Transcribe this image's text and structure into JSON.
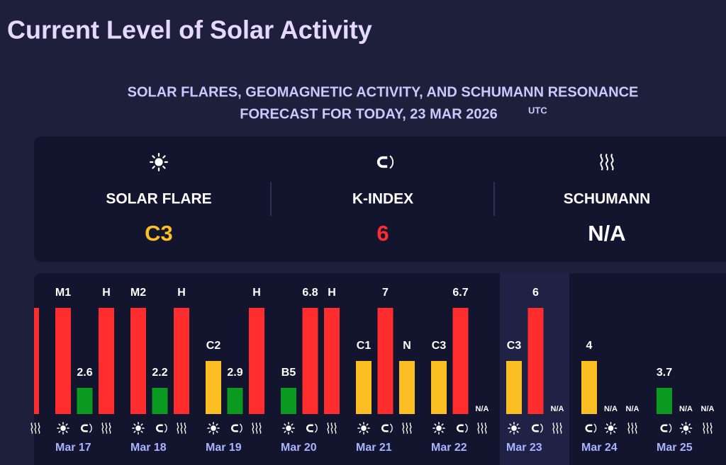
{
  "header": {
    "title": "Current Level of Solar Activity",
    "subtitle": "SOLAR FLARES, GEOMAGNETIC ACTIVITY, AND SCHUMANN RESONANCE",
    "subtitle2": "FORECAST FOR TODAY, 23 MAR 2026",
    "timezone": "UTC"
  },
  "cards": [
    {
      "icon": "sun",
      "label": "SOLAR FLARE",
      "value": "C3",
      "color": "#fbbf24"
    },
    {
      "icon": "magnet",
      "label": "K-INDEX",
      "value": "6",
      "color": "#ff2d2d"
    },
    {
      "icon": "waves",
      "label": "SCHUMANN",
      "value": "N/A",
      "color": "#ffffff"
    }
  ],
  "days": [
    {
      "date": "Mar 17",
      "bars": [
        {
          "label": "M1",
          "color": "#ff2d2d",
          "icon": "sun"
        },
        {
          "label": "2.6",
          "color": "#0a9a1f",
          "icon": "magnet"
        },
        {
          "label": "H",
          "color": "#ff2d2d",
          "icon": "waves"
        }
      ]
    },
    {
      "date": "Mar 18",
      "bars": [
        {
          "label": "M2",
          "color": "#ff2d2d",
          "icon": "sun"
        },
        {
          "label": "2.2",
          "color": "#0a9a1f",
          "icon": "magnet"
        },
        {
          "label": "H",
          "color": "#ff2d2d",
          "icon": "waves"
        }
      ]
    },
    {
      "date": "Mar 19",
      "bars": [
        {
          "label": "C2",
          "color": "#fbbf24",
          "icon": "sun"
        },
        {
          "label": "2.9",
          "color": "#0a9a1f",
          "icon": "magnet"
        },
        {
          "label": "H",
          "color": "#ff2d2d",
          "icon": "waves"
        }
      ]
    },
    {
      "date": "Mar 20",
      "bars": [
        {
          "label": "B5",
          "color": "#0a9a1f",
          "icon": "sun"
        },
        {
          "label": "6.8",
          "color": "#ff2d2d",
          "icon": "magnet"
        },
        {
          "label": "H",
          "color": "#ff2d2d",
          "icon": "waves"
        }
      ]
    },
    {
      "date": "Mar 21",
      "bars": [
        {
          "label": "C1",
          "color": "#fbbf24",
          "icon": "sun"
        },
        {
          "label": "7",
          "color": "#ff2d2d",
          "icon": "magnet"
        },
        {
          "label": "N",
          "color": "#fbbf24",
          "icon": "waves"
        }
      ]
    },
    {
      "date": "Mar 22",
      "bars": [
        {
          "label": "C3",
          "color": "#fbbf24",
          "icon": "sun"
        },
        {
          "label": "6.7",
          "color": "#ff2d2d",
          "icon": "magnet"
        },
        {
          "label": "N/A",
          "color": null,
          "icon": "waves"
        }
      ]
    },
    {
      "date": "Mar 23",
      "bars": [
        {
          "label": "C3",
          "color": "#fbbf24",
          "icon": "sun"
        },
        {
          "label": "6",
          "color": "#ff2d2d",
          "icon": "magnet"
        },
        {
          "label": "N/A",
          "color": null,
          "icon": "waves"
        }
      ]
    },
    {
      "date": "Mar 24",
      "bars": [
        {
          "label": "4",
          "color": "#fbbf24",
          "icon": "magnet"
        },
        {
          "label": "N/A",
          "color": null,
          "icon": "sun"
        },
        {
          "label": "N/A",
          "color": null,
          "icon": "waves"
        }
      ]
    },
    {
      "date": "Mar 25",
      "bars": [
        {
          "label": "3.7",
          "color": "#0a9a1f",
          "icon": "magnet"
        },
        {
          "label": "N/A",
          "color": null,
          "icon": "sun"
        },
        {
          "label": "N/A",
          "color": null,
          "icon": "waves"
        }
      ]
    }
  ]
}
